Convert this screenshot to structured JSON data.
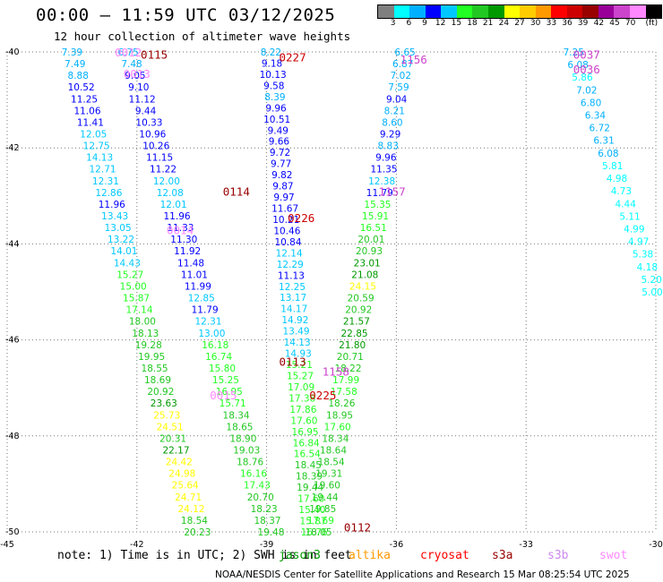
{
  "header": {
    "title": "00:00 – 11:59 UTC 03/12/2025",
    "subtitle": "12 hour collection of altimeter wave heights"
  },
  "colorbar": {
    "colors": [
      "#7f7f7f",
      "#00ffff",
      "#00b0ff",
      "#0000ff",
      "#00c8ff",
      "#22ff22",
      "#22c822",
      "#009900",
      "#ffff00",
      "#ffcc00",
      "#ff9900",
      "#ff0000",
      "#cc0000",
      "#990000",
      "#990099",
      "#cc44cc",
      "#ff88ff",
      "#000000"
    ],
    "labels": [
      "3",
      "6",
      "9",
      "12",
      "15",
      "18",
      "21",
      "24",
      "27",
      "30",
      "33",
      "36",
      "39",
      "42",
      "45",
      "70"
    ],
    "unit": "(ft)"
  },
  "map": {
    "lon_ticks": [
      "-45",
      "-42",
      "-39",
      "-36",
      "-33",
      "-30"
    ],
    "lat_ticks": [
      "-40",
      "-42",
      "-44",
      "-46",
      "-48",
      "-50"
    ],
    "track_labels": [
      {
        "text": "0012",
        "lon": -42.2,
        "lat": -40.0,
        "color": "#ff88ff"
      },
      {
        "text": "0013",
        "lon": -42.0,
        "lat": -40.45,
        "color": "#ff88ff"
      },
      {
        "text": "0115",
        "lon": -41.6,
        "lat": -40.05,
        "color": "#990000"
      },
      {
        "text": "0227",
        "lon": -38.4,
        "lat": -40.1,
        "color": "#cc0000"
      },
      {
        "text": "1156",
        "lon": -35.6,
        "lat": -40.15,
        "color": "#cc44cc"
      },
      {
        "text": "0037",
        "lon": -31.6,
        "lat": -40.05,
        "color": "#cc44cc"
      },
      {
        "text": "0036",
        "lon": -31.6,
        "lat": -40.35,
        "color": "#cc44cc"
      },
      {
        "text": "0114",
        "lon": -39.7,
        "lat": -42.9,
        "color": "#990000"
      },
      {
        "text": "1157",
        "lon": -36.1,
        "lat": -42.9,
        "color": "#cc44cc"
      },
      {
        "text": "0226",
        "lon": -38.2,
        "lat": -43.45,
        "color": "#cc0000"
      },
      {
        "text": "0014",
        "lon": -41.0,
        "lat": -43.7,
        "color": "#ff88ff"
      },
      {
        "text": "0113",
        "lon": -38.4,
        "lat": -46.45,
        "color": "#990000"
      },
      {
        "text": "1158",
        "lon": -37.4,
        "lat": -46.65,
        "color": "#cc44cc"
      },
      {
        "text": "0225",
        "lon": -37.7,
        "lat": -47.15,
        "color": "#cc0000"
      },
      {
        "text": "0015",
        "lon": -40.0,
        "lat": -47.15,
        "color": "#ff88ff"
      },
      {
        "text": "0112",
        "lon": -36.9,
        "lat": -49.9,
        "color": "#990000"
      }
    ],
    "tracks": [
      {
        "lon0": -43.5,
        "lat0": -40.0,
        "lon1": -40.6,
        "lat1": -50.0,
        "values": [
          7.39,
          7.49,
          8.88,
          10.52,
          11.25,
          11.06,
          11.41,
          12.05,
          12.75,
          14.13,
          12.71,
          12.31,
          12.86,
          11.96,
          13.43,
          13.05,
          13.22,
          14.01,
          14.43,
          15.27,
          15.0,
          15.87,
          17.14,
          18.0,
          18.13,
          19.28,
          19.95,
          18.55,
          18.69,
          20.92,
          23.63,
          25.73,
          24.51,
          20.31,
          22.17,
          24.42,
          24.98,
          25.64,
          24.71,
          24.12,
          18.54,
          20.23
        ]
      },
      {
        "lon0": -42.2,
        "lat0": -40.0,
        "lon1": -38.9,
        "lat1": -50.0,
        "values": [
          6.75,
          7.48,
          9.05,
          9.1,
          11.12,
          9.44,
          10.33,
          10.96,
          10.26,
          11.15,
          11.22,
          12.0,
          12.08,
          12.01,
          11.96,
          11.33,
          11.3,
          11.92,
          11.48,
          11.01,
          11.99,
          12.85,
          11.79,
          12.31,
          13.0,
          16.18,
          16.74,
          15.8,
          15.25,
          16.95,
          15.71,
          18.34,
          18.65,
          18.9,
          19.03,
          18.76,
          16.16,
          17.43,
          20.7,
          18.23,
          18.37,
          19.48
        ]
      },
      {
        "lon0": -38.9,
        "lat0": -40.0,
        "lon1": -37.9,
        "lat1": -50.0,
        "values": [
          8.22,
          9.18,
          10.13,
          9.58,
          8.39,
          9.96,
          10.51,
          9.49,
          9.66,
          9.72,
          9.77,
          9.82,
          9.87,
          9.97,
          11.67,
          10.21,
          10.46,
          10.84,
          12.14,
          12.29,
          11.13,
          12.25,
          13.17,
          14.17,
          14.92,
          13.49,
          14.13,
          14.93,
          15.21,
          15.27,
          17.09,
          17.38,
          17.86,
          17.6,
          16.95,
          16.84,
          16.54,
          18.45,
          18.39,
          19.44,
          17.6,
          15.4,
          15.87,
          16.76
        ]
      },
      {
        "lon0": -35.8,
        "lat0": -40.0,
        "lon1": -37.8,
        "lat1": -50.0,
        "values": [
          6.65,
          6.87,
          7.02,
          7.59,
          9.04,
          8.21,
          8.6,
          9.29,
          8.83,
          9.96,
          11.35,
          12.38,
          11.79,
          15.35,
          15.91,
          16.51,
          20.01,
          20.93,
          23.01,
          21.08,
          24.15,
          20.59,
          20.92,
          21.57,
          22.85,
          21.8,
          20.71,
          18.22,
          17.99,
          17.58,
          18.26,
          18.95,
          17.6,
          18.34,
          18.64,
          18.54,
          19.31,
          19.6,
          19.44,
          19.85,
          17.69,
          18.05
        ]
      },
      {
        "lon0": -31.9,
        "lat0": -40.0,
        "lon1": -30.0,
        "lat1": -45.0,
        "values": [
          7.25,
          6.08,
          5.86,
          7.02,
          6.8,
          6.34,
          6.72,
          6.31,
          6.08,
          5.81,
          4.98,
          4.73,
          4.44,
          5.11,
          4.99,
          4.97,
          5.38,
          4.18,
          5.2,
          5.0
        ]
      }
    ]
  },
  "note": "note: 1) Time is in UTC; 2) SWH is in feet",
  "satellites": [
    {
      "name": "jason3",
      "color": "#009900"
    },
    {
      "name": "altika",
      "color": "#ff9900"
    },
    {
      "name": "cryosat",
      "color": "#ff0000"
    },
    {
      "name": "s3a",
      "color": "#990000"
    },
    {
      "name": "s3b",
      "color": "#cc88ee"
    },
    {
      "name": "swot",
      "color": "#ff88ff"
    }
  ],
  "footer": "NOAA/NESDIS Center for Satellite Applications and Research   15 Mar 08:25:54 UTC 2025"
}
